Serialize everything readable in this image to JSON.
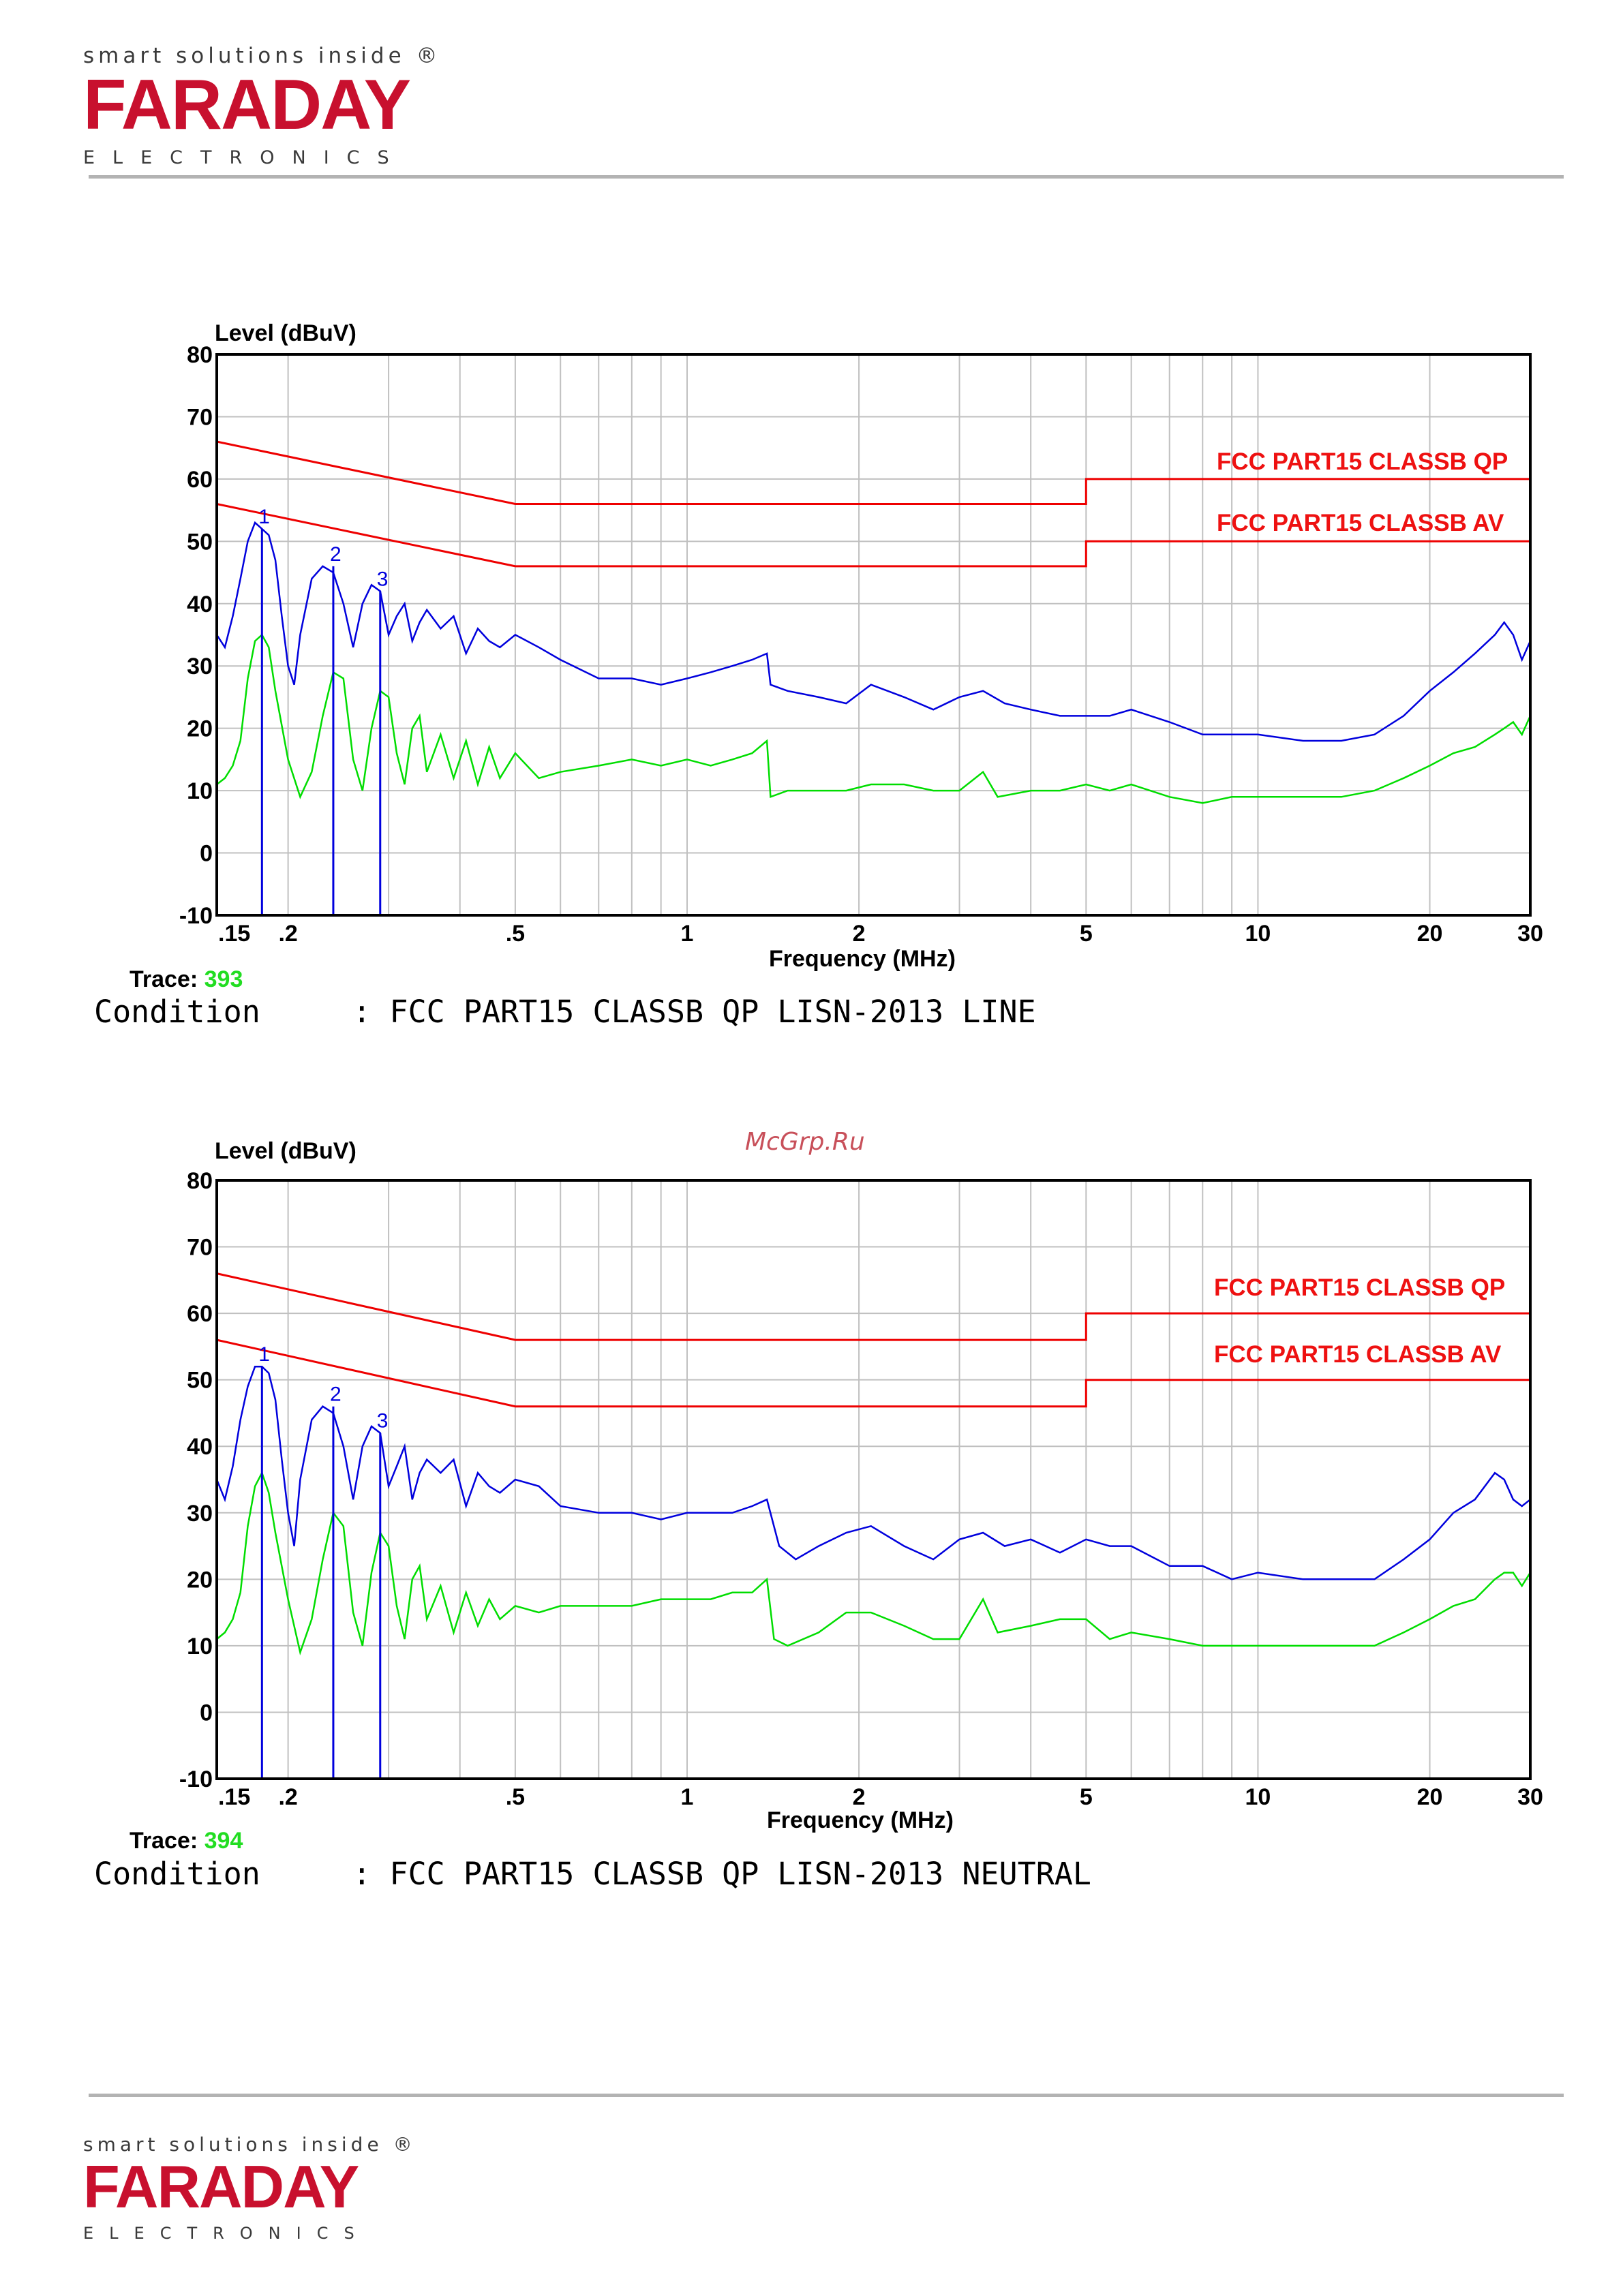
{
  "brand": {
    "tagline": "smart solutions inside ®",
    "wordmark": "FARADAY",
    "subtitle": "ELECTRONICS"
  },
  "watermark": "McGrp.Ru",
  "charts": [
    {
      "y_title": "Level (dBuV)",
      "x_title": "Frequency (MHz)",
      "trace_label": "Trace:",
      "trace_value": "393",
      "condition": "Condition     : FCC PART15 CLASSB QP LISN-2013 LINE",
      "limit_labels": [
        "FCC PART15 CLASSB QP",
        "FCC PART15 CLASSB AV"
      ]
    },
    {
      "y_title": "Level (dBuV)",
      "x_title": "Frequency (MHz)",
      "trace_label": "Trace:",
      "trace_value": "394",
      "condition": "Condition     : FCC PART15 CLASSB QP LISN-2013 NEUTRAL",
      "limit_labels": [
        "FCC PART15 CLASSB QP",
        "FCC PART15 CLASSB AV"
      ]
    }
  ],
  "chart_data": [
    {
      "type": "line",
      "xscale": "log",
      "xlim": [
        0.15,
        30
      ],
      "ylim": [
        -10,
        80
      ],
      "grid": true,
      "x_ticks": [
        0.15,
        0.2,
        0.5,
        1,
        2,
        5,
        10,
        20,
        30
      ],
      "x_tick_labels": [
        ".15",
        ".2",
        ".5",
        "1",
        "2",
        "5",
        "10",
        "20",
        "30"
      ],
      "y_ticks": [
        -10,
        0,
        10,
        20,
        30,
        40,
        50,
        60,
        70,
        80
      ],
      "colors": {
        "qp": "#0000dd",
        "av": "#00dd00",
        "limit": "#ee0000"
      },
      "limits": [
        {
          "name": "FCC PART15 CLASSB QP",
          "x": [
            0.15,
            0.5,
            0.5,
            5,
            5,
            30
          ],
          "y": [
            66,
            56,
            56,
            56,
            60,
            60
          ]
        },
        {
          "name": "FCC PART15 CLASSB AV",
          "x": [
            0.15,
            0.5,
            0.5,
            5,
            5,
            30
          ],
          "y": [
            56,
            46,
            46,
            46,
            50,
            50
          ]
        }
      ],
      "series": [
        {
          "x": [
            0.15,
            0.155,
            0.16,
            0.165,
            0.17,
            0.175,
            0.18,
            0.185,
            0.19,
            0.195,
            0.2,
            0.205,
            0.21,
            0.22,
            0.23,
            0.24,
            0.25,
            0.26,
            0.27,
            0.28,
            0.29,
            0.3,
            0.31,
            0.32,
            0.33,
            0.34,
            0.35,
            0.37,
            0.39,
            0.41,
            0.43,
            0.45,
            0.47,
            0.5,
            0.55,
            0.6,
            0.7,
            0.8,
            0.9,
            1.0,
            1.1,
            1.2,
            1.3,
            1.38,
            1.4,
            1.5,
            1.7,
            1.9,
            2.1,
            2.4,
            2.7,
            3.0,
            3.3,
            3.6,
            4.0,
            4.5,
            5.0,
            5.5,
            6.0,
            7.0,
            8.0,
            9.0,
            10,
            12,
            14,
            16,
            18,
            20,
            22,
            24,
            26,
            27,
            28,
            29,
            30
          ],
          "y": [
            35,
            33,
            38,
            44,
            50,
            53,
            52,
            51,
            47,
            38,
            30,
            27,
            35,
            44,
            46,
            45,
            40,
            33,
            40,
            43,
            42,
            35,
            38,
            40,
            34,
            37,
            39,
            36,
            38,
            32,
            36,
            34,
            33,
            35,
            33,
            31,
            28,
            28,
            27,
            28,
            29,
            30,
            31,
            32,
            27,
            26,
            25,
            24,
            27,
            25,
            23,
            25,
            26,
            24,
            23,
            22,
            22,
            22,
            23,
            21,
            19,
            19,
            19,
            18,
            18,
            19,
            22,
            26,
            29,
            32,
            35,
            37,
            35,
            31,
            34
          ]
        },
        {
          "x": [
            0.15,
            0.155,
            0.16,
            0.165,
            0.17,
            0.175,
            0.18,
            0.185,
            0.19,
            0.2,
            0.21,
            0.22,
            0.23,
            0.24,
            0.25,
            0.26,
            0.27,
            0.28,
            0.29,
            0.3,
            0.31,
            0.32,
            0.33,
            0.34,
            0.35,
            0.37,
            0.39,
            0.41,
            0.43,
            0.45,
            0.47,
            0.5,
            0.55,
            0.6,
            0.7,
            0.8,
            0.9,
            1.0,
            1.1,
            1.2,
            1.3,
            1.38,
            1.4,
            1.5,
            1.7,
            1.9,
            2.1,
            2.4,
            2.7,
            3.0,
            3.3,
            3.5,
            4.0,
            4.5,
            5.0,
            5.5,
            6.0,
            7.0,
            8.0,
            9.0,
            10,
            12,
            14,
            16,
            18,
            20,
            22,
            24,
            26,
            27,
            28,
            29,
            30
          ],
          "y": [
            11,
            12,
            14,
            18,
            28,
            34,
            35,
            33,
            26,
            15,
            9,
            13,
            22,
            29,
            28,
            15,
            10,
            20,
            26,
            25,
            16,
            11,
            20,
            22,
            13,
            19,
            12,
            18,
            11,
            17,
            12,
            16,
            12,
            13,
            14,
            15,
            14,
            15,
            14,
            15,
            16,
            18,
            9,
            10,
            10,
            10,
            11,
            11,
            10,
            10,
            13,
            9,
            10,
            10,
            11,
            10,
            11,
            9,
            8,
            9,
            9,
            9,
            9,
            10,
            12,
            14,
            16,
            17,
            19,
            20,
            21,
            19,
            22
          ]
        }
      ],
      "markers": [
        {
          "label": "1",
          "x": 0.18,
          "y": 52
        },
        {
          "label": "2",
          "x": 0.24,
          "y": 46
        },
        {
          "label": "3",
          "x": 0.29,
          "y": 42
        }
      ]
    },
    {
      "type": "line",
      "xscale": "log",
      "xlim": [
        0.15,
        30
      ],
      "ylim": [
        -10,
        80
      ],
      "grid": true,
      "x_ticks": [
        0.15,
        0.2,
        0.5,
        1,
        2,
        5,
        10,
        20,
        30
      ],
      "x_tick_labels": [
        ".15",
        ".2",
        ".5",
        "1",
        "2",
        "5",
        "10",
        "20",
        "30"
      ],
      "y_ticks": [
        -10,
        0,
        10,
        20,
        30,
        40,
        50,
        60,
        70,
        80
      ],
      "colors": {
        "qp": "#0000dd",
        "av": "#00dd00",
        "limit": "#ee0000"
      },
      "limits": [
        {
          "name": "FCC PART15 CLASSB QP",
          "x": [
            0.15,
            0.5,
            0.5,
            5,
            5,
            30
          ],
          "y": [
            66,
            56,
            56,
            56,
            60,
            60
          ]
        },
        {
          "name": "FCC PART15 CLASSB AV",
          "x": [
            0.15,
            0.5,
            0.5,
            5,
            5,
            30
          ],
          "y": [
            56,
            46,
            46,
            46,
            50,
            50
          ]
        }
      ],
      "series": [
        {
          "x": [
            0.15,
            0.155,
            0.16,
            0.165,
            0.17,
            0.175,
            0.18,
            0.185,
            0.19,
            0.195,
            0.2,
            0.205,
            0.21,
            0.22,
            0.23,
            0.24,
            0.25,
            0.26,
            0.27,
            0.28,
            0.29,
            0.3,
            0.31,
            0.32,
            0.33,
            0.34,
            0.35,
            0.37,
            0.39,
            0.41,
            0.43,
            0.45,
            0.47,
            0.5,
            0.55,
            0.6,
            0.7,
            0.8,
            0.9,
            1.0,
            1.1,
            1.2,
            1.3,
            1.38,
            1.45,
            1.55,
            1.7,
            1.9,
            2.1,
            2.4,
            2.7,
            3.0,
            3.3,
            3.6,
            4.0,
            4.5,
            5.0,
            5.5,
            6.0,
            7.0,
            8.0,
            9.0,
            10,
            12,
            14,
            16,
            18,
            20,
            22,
            24,
            26,
            27,
            28,
            29,
            30
          ],
          "y": [
            35,
            32,
            37,
            44,
            49,
            52,
            52,
            51,
            47,
            38,
            30,
            25,
            35,
            44,
            46,
            45,
            40,
            32,
            40,
            43,
            42,
            34,
            37,
            40,
            32,
            36,
            38,
            36,
            38,
            31,
            36,
            34,
            33,
            35,
            34,
            31,
            30,
            30,
            29,
            30,
            30,
            30,
            31,
            32,
            25,
            23,
            25,
            27,
            28,
            25,
            23,
            26,
            27,
            25,
            26,
            24,
            26,
            25,
            25,
            22,
            22,
            20,
            21,
            20,
            20,
            20,
            23,
            26,
            30,
            32,
            36,
            35,
            32,
            31,
            32
          ]
        },
        {
          "x": [
            0.15,
            0.155,
            0.16,
            0.165,
            0.17,
            0.175,
            0.18,
            0.185,
            0.19,
            0.2,
            0.21,
            0.22,
            0.23,
            0.24,
            0.25,
            0.26,
            0.27,
            0.28,
            0.29,
            0.3,
            0.31,
            0.32,
            0.33,
            0.34,
            0.35,
            0.37,
            0.39,
            0.41,
            0.43,
            0.45,
            0.47,
            0.5,
            0.55,
            0.6,
            0.7,
            0.8,
            0.9,
            1.0,
            1.1,
            1.2,
            1.3,
            1.38,
            1.42,
            1.5,
            1.7,
            1.9,
            2.1,
            2.4,
            2.7,
            3.0,
            3.3,
            3.5,
            4.0,
            4.5,
            5.0,
            5.5,
            6.0,
            7.0,
            8.0,
            9.0,
            10,
            12,
            14,
            16,
            18,
            20,
            22,
            24,
            26,
            27,
            28,
            29,
            30
          ],
          "y": [
            11,
            12,
            14,
            18,
            28,
            34,
            36,
            33,
            27,
            17,
            9,
            14,
            23,
            30,
            28,
            15,
            10,
            21,
            27,
            25,
            16,
            11,
            20,
            22,
            14,
            19,
            12,
            18,
            13,
            17,
            14,
            16,
            15,
            16,
            16,
            16,
            17,
            17,
            17,
            18,
            18,
            20,
            11,
            10,
            12,
            15,
            15,
            13,
            11,
            11,
            17,
            12,
            13,
            14,
            14,
            11,
            12,
            11,
            10,
            10,
            10,
            10,
            10,
            10,
            12,
            14,
            16,
            17,
            20,
            21,
            21,
            19,
            21
          ]
        }
      ],
      "markers": [
        {
          "label": "1",
          "x": 0.18,
          "y": 52
        },
        {
          "label": "2",
          "x": 0.24,
          "y": 46
        },
        {
          "label": "3",
          "x": 0.29,
          "y": 42
        }
      ]
    }
  ]
}
